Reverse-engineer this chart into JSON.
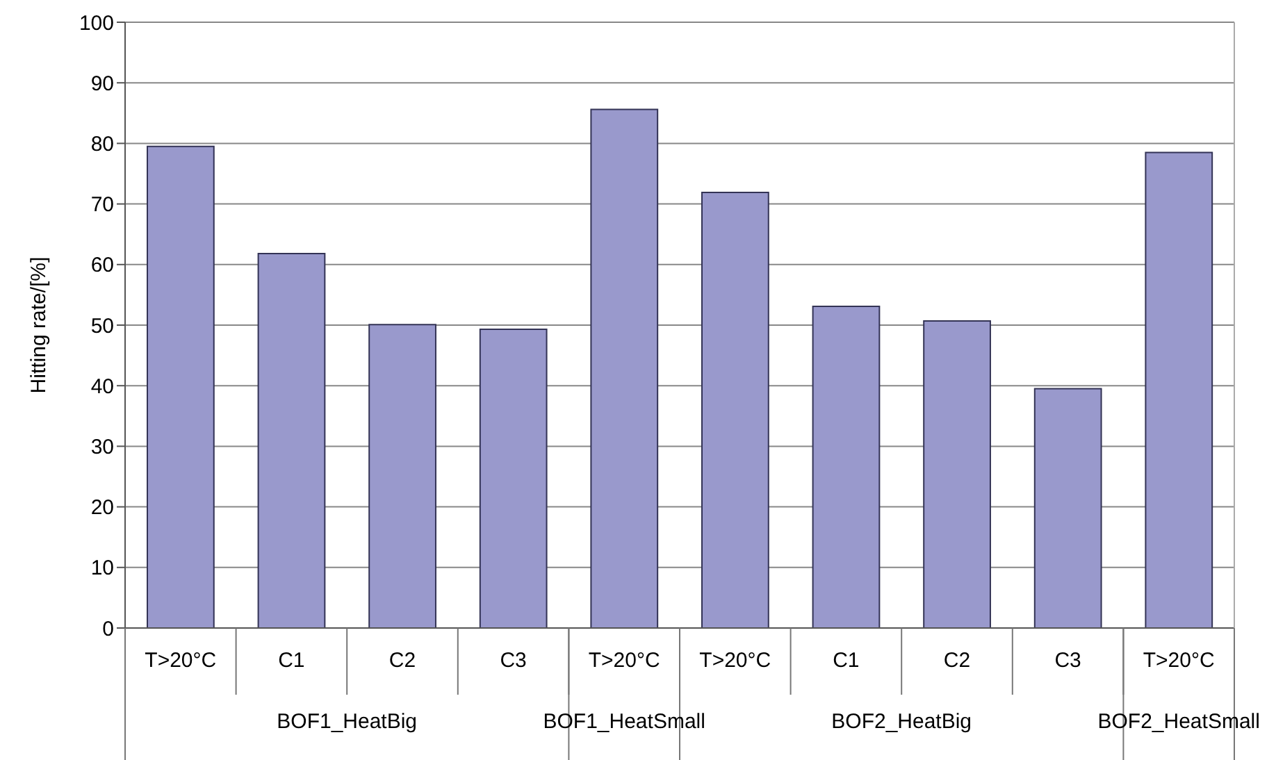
{
  "chart_data": {
    "type": "bar",
    "ylabel": "Hitting rate/[%]",
    "categories": [
      "T>20°C",
      "C1",
      "C2",
      "C3",
      "T>20°C",
      "T>20°C",
      "C1",
      "C2",
      "C3",
      "T>20°C"
    ],
    "values": [
      79.5,
      61.8,
      50.1,
      49.3,
      85.6,
      71.9,
      53.1,
      50.7,
      39.5,
      78.5
    ],
    "color": "#9999cc",
    "ylim": [
      0,
      100
    ],
    "yticks": [
      0,
      10,
      20,
      30,
      40,
      50,
      60,
      70,
      80,
      90,
      100
    ],
    "grid": "y",
    "annotations": [
      "BOF1_HeatBig",
      "BOF1_HeatSmall",
      "BOF2_HeatBig",
      "BOF2_HeatSmall"
    ]
  }
}
